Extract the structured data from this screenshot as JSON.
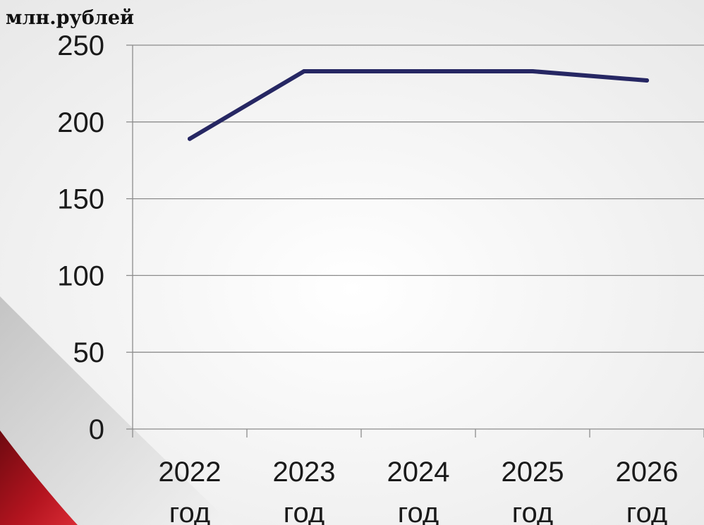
{
  "chart_data": {
    "type": "line",
    "title": "",
    "ylabel": "млн.рублей",
    "xlabel": "",
    "categories": [
      [
        "2022",
        "год"
      ],
      [
        "2023",
        "год"
      ],
      [
        "2024",
        "год"
      ],
      [
        "2025",
        "год"
      ],
      [
        "2026",
        "год"
      ]
    ],
    "series": [
      {
        "values": [
          189,
          233,
          233,
          233,
          227
        ]
      }
    ],
    "ylim": [
      0,
      250
    ],
    "yticks": [
      0,
      50,
      100,
      150,
      200,
      250
    ],
    "grid": true,
    "legend": "none",
    "colors": {
      "line": "#262763",
      "grid": "#8c8c8c",
      "axis": "#8c8c8c",
      "decor": "#a81420"
    }
  }
}
